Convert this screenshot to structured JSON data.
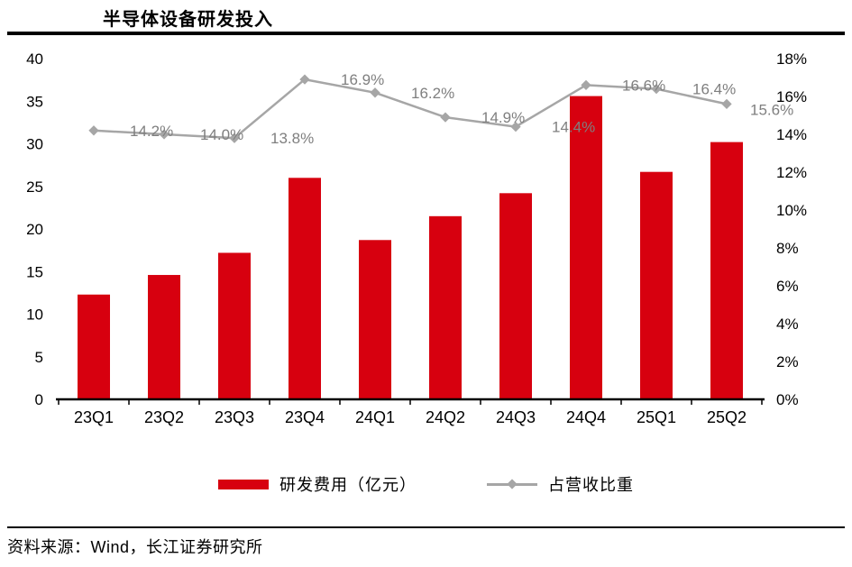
{
  "title": "半导体设备研发投入",
  "footer": {
    "source": "资料来源：Wind，长江证券研究所"
  },
  "legend": [
    {
      "label": "研发费用（亿元）",
      "type": "bar"
    },
    {
      "label": "占营收比重",
      "type": "line"
    }
  ],
  "colors": {
    "bar": "#d7000f",
    "line": "#a6a6a6",
    "marker": "#a6a6a6",
    "point_label": "#7f7f7f",
    "axis": "#000000"
  },
  "chart_data": {
    "type": "bar",
    "subtype": "bar+line-combo",
    "title": "半导体设备研发投入",
    "categories": [
      "23Q1",
      "23Q2",
      "23Q3",
      "23Q4",
      "24Q1",
      "24Q2",
      "24Q3",
      "24Q4",
      "25Q1",
      "25Q2"
    ],
    "series": [
      {
        "name": "研发费用（亿元）",
        "type": "bar",
        "axis": "left",
        "values": [
          12.3,
          14.6,
          17.2,
          26.0,
          18.7,
          21.5,
          24.2,
          35.6,
          26.7,
          30.2
        ]
      },
      {
        "name": "占营收比重",
        "type": "line",
        "axis": "right",
        "values": [
          14.2,
          14.0,
          13.8,
          16.9,
          16.2,
          14.9,
          14.4,
          16.6,
          16.4,
          15.6
        ],
        "labels": [
          "14.2%",
          "14.0%",
          "13.8%",
          "16.9%",
          "16.2%",
          "14.9%",
          "14.4%",
          "16.6%",
          "16.4%",
          "15.6%"
        ]
      }
    ],
    "left_axis": {
      "min": 0,
      "max": 40,
      "step": 5,
      "ticks": [
        "0",
        "5",
        "10",
        "15",
        "20",
        "25",
        "30",
        "35",
        "40"
      ]
    },
    "right_axis": {
      "min": 0,
      "max": 18,
      "step": 2,
      "ticks": [
        "0%",
        "2%",
        "4%",
        "6%",
        "8%",
        "10%",
        "12%",
        "14%",
        "16%",
        "18%"
      ]
    },
    "grid": false,
    "legend_position": "bottom"
  }
}
